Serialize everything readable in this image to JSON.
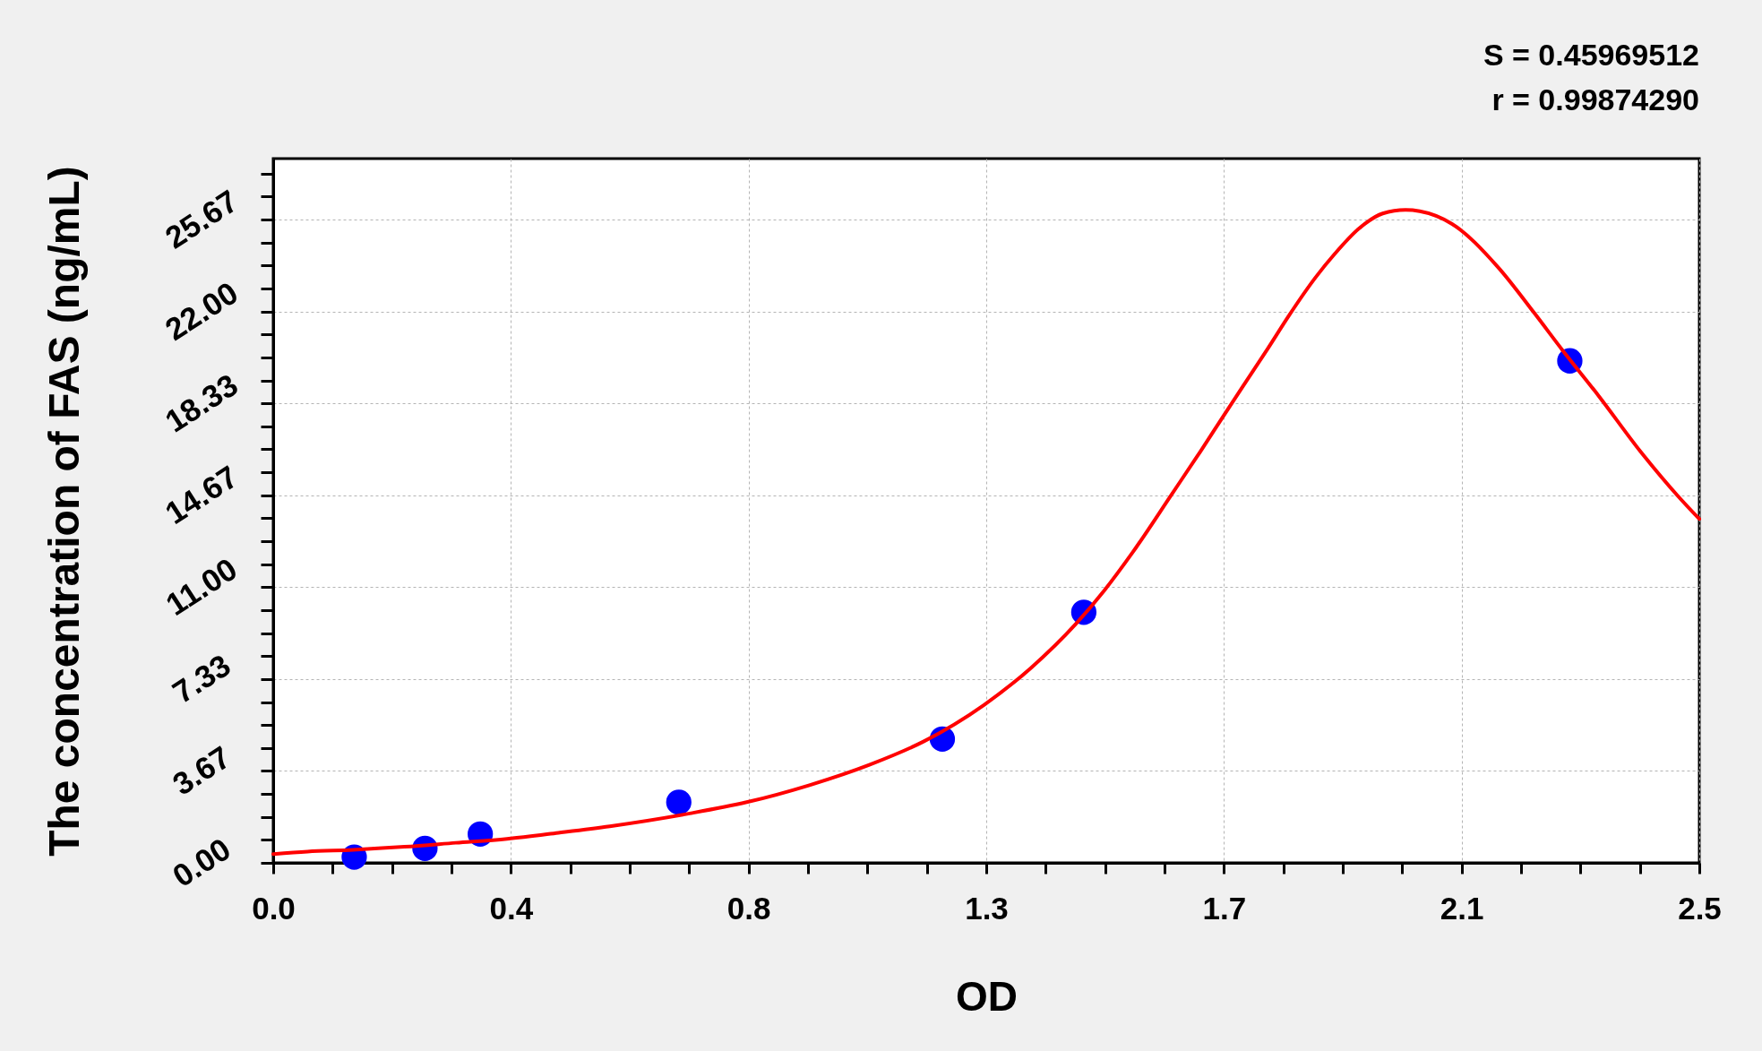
{
  "chart_data": {
    "type": "scatter",
    "xlabel": "OD",
    "ylabel": "The concentration of FAS (ng/mL)",
    "annotations": [
      "S = 0.45969512",
      "r = 0.99874290"
    ],
    "xlim": [
      0,
      2.5
    ],
    "xticks": [
      {
        "value": 0,
        "label": "0.0"
      },
      {
        "value": 0.10417,
        "label": null
      },
      {
        "value": 0.20833,
        "label": null
      },
      {
        "value": 0.3125,
        "label": null
      },
      {
        "value": 0.41667,
        "label": "0.4"
      },
      {
        "value": 0.52083,
        "label": null
      },
      {
        "value": 0.625,
        "label": null
      },
      {
        "value": 0.72917,
        "label": null
      },
      {
        "value": 0.83333,
        "label": "0.8"
      },
      {
        "value": 0.9375,
        "label": null
      },
      {
        "value": 1.04167,
        "label": null
      },
      {
        "value": 1.14583,
        "label": null
      },
      {
        "value": 1.25,
        "label": "1.3"
      },
      {
        "value": 1.35417,
        "label": null
      },
      {
        "value": 1.45833,
        "label": null
      },
      {
        "value": 1.5625,
        "label": null
      },
      {
        "value": 1.66667,
        "label": "1.7"
      },
      {
        "value": 1.77083,
        "label": null
      },
      {
        "value": 1.875,
        "label": null
      },
      {
        "value": 1.97917,
        "label": null
      },
      {
        "value": 2.08333,
        "label": "2.1"
      },
      {
        "value": 2.1875,
        "label": null
      },
      {
        "value": 2.29167,
        "label": null
      },
      {
        "value": 2.39583,
        "label": null
      },
      {
        "value": 2.5,
        "label": "2.5"
      }
    ],
    "ylim": [
      0,
      28.1
    ],
    "yticks": [
      {
        "value": 0,
        "label": "0.00"
      },
      {
        "value": 0.91667,
        "label": null
      },
      {
        "value": 1.83333,
        "label": null
      },
      {
        "value": 2.75,
        "label": null
      },
      {
        "value": 3.66667,
        "label": "3.67"
      },
      {
        "value": 4.58333,
        "label": null
      },
      {
        "value": 5.5,
        "label": null
      },
      {
        "value": 6.41667,
        "label": null
      },
      {
        "value": 7.33333,
        "label": "7.33"
      },
      {
        "value": 8.25,
        "label": null
      },
      {
        "value": 9.16667,
        "label": null
      },
      {
        "value": 10.08333,
        "label": null
      },
      {
        "value": 11,
        "label": "11.00"
      },
      {
        "value": 11.91667,
        "label": null
      },
      {
        "value": 12.83333,
        "label": null
      },
      {
        "value": 13.75,
        "label": null
      },
      {
        "value": 14.66667,
        "label": "14.67"
      },
      {
        "value": 15.58333,
        "label": null
      },
      {
        "value": 16.5,
        "label": null
      },
      {
        "value": 17.41667,
        "label": null
      },
      {
        "value": 18.33333,
        "label": "18.33"
      },
      {
        "value": 19.25,
        "label": null
      },
      {
        "value": 20.16667,
        "label": null
      },
      {
        "value": 21.08333,
        "label": null
      },
      {
        "value": 22,
        "label": "22.00"
      },
      {
        "value": 22.91667,
        "label": null
      },
      {
        "value": 23.83333,
        "label": null
      },
      {
        "value": 24.75,
        "label": null
      },
      {
        "value": 25.66667,
        "label": "25.67"
      },
      {
        "value": 26.58333,
        "label": null
      },
      {
        "value": 27.5,
        "label": null
      }
    ],
    "grid": true,
    "series": [
      {
        "marker": "circle",
        "color": "#0000ff",
        "x": [
          0.142,
          0.266,
          0.363,
          0.711,
          1.173,
          1.421,
          2.273
        ],
        "values": [
          0.23,
          0.58,
          1.15,
          2.42,
          4.94,
          10.0,
          20.03
        ]
      },
      {
        "type": "line",
        "color": "#ff0000",
        "x": [
          0,
          0.06,
          0.14,
          0.23,
          0.32,
          0.41,
          0.5,
          0.59,
          0.73,
          0.83,
          0.94,
          1.045,
          1.14,
          1.246,
          1.328,
          1.407,
          1.457,
          1.507,
          1.575,
          1.625,
          1.665,
          1.701,
          1.743,
          1.781,
          1.827,
          1.861,
          1.903,
          1.945,
          1.985,
          2.01,
          2.066,
          2.147,
          2.211,
          2.26,
          2.324,
          2.397,
          2.462,
          2.5
        ],
        "values": [
          0.35,
          0.45,
          0.52,
          0.64,
          0.8,
          0.96,
          1.2,
          1.46,
          1.97,
          2.42,
          3.1,
          3.91,
          4.84,
          6.3,
          7.77,
          9.53,
          10.87,
          12.4,
          14.7,
          16.4,
          17.8,
          19.05,
          20.5,
          21.85,
          23.35,
          24.3,
          25.3,
          25.91,
          26.05,
          26.0,
          25.5,
          23.77,
          21.93,
          20.46,
          18.62,
          16.41,
          14.65,
          13.72
        ]
      }
    ]
  }
}
